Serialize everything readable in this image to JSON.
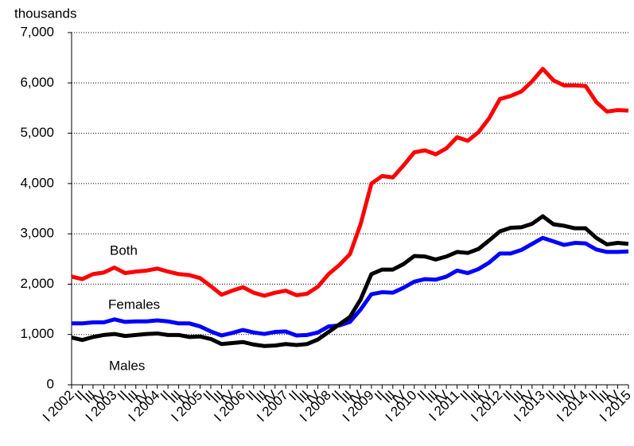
{
  "chart_data": {
    "type": "line",
    "y_label": "thousands",
    "categories": [
      "I 2002",
      "II",
      "III",
      "IV",
      "I 2003",
      "II",
      "III",
      "IV",
      "I 2004",
      "II",
      "III",
      "IV",
      "I 2005",
      "II",
      "III",
      "IV",
      "I 2006",
      "II",
      "III",
      "IV",
      "I 2007",
      "II",
      "III",
      "IV",
      "I 2008",
      "II",
      "III",
      "IV",
      "I 2009",
      "II",
      "III",
      "IV",
      "I 2010",
      "II",
      "III",
      "IV",
      "I 2011",
      "II",
      "III",
      "IV",
      "I 2012",
      "II",
      "III",
      "IV",
      "I 2013",
      "II",
      "III",
      "IV",
      "I 2014",
      "II",
      "III",
      "IV",
      "I 2015"
    ],
    "series": [
      {
        "name": "Both",
        "color": "#ff0000",
        "values": [
          2150,
          2100,
          2200,
          2230,
          2330,
          2220,
          2250,
          2270,
          2310,
          2250,
          2200,
          2180,
          2120,
          1960,
          1790,
          1870,
          1940,
          1830,
          1770,
          1830,
          1870,
          1780,
          1810,
          1950,
          2200,
          2380,
          2600,
          3200,
          4000,
          4150,
          4120,
          4360,
          4620,
          4660,
          4580,
          4700,
          4920,
          4850,
          5020,
          5300,
          5680,
          5740,
          5830,
          6030,
          6280,
          6050,
          5950,
          5950,
          5940,
          5620,
          5430,
          5460,
          5450
        ]
      },
      {
        "name": "Females",
        "color": "#0000ff",
        "values": [
          1220,
          1220,
          1240,
          1240,
          1300,
          1250,
          1260,
          1260,
          1280,
          1260,
          1220,
          1220,
          1160,
          1060,
          980,
          1030,
          1090,
          1040,
          1010,
          1050,
          1060,
          980,
          990,
          1040,
          1160,
          1180,
          1250,
          1500,
          1800,
          1840,
          1830,
          1930,
          2050,
          2100,
          2090,
          2150,
          2270,
          2220,
          2300,
          2430,
          2610,
          2610,
          2680,
          2800,
          2920,
          2850,
          2780,
          2820,
          2810,
          2690,
          2640,
          2640,
          2650
        ]
      },
      {
        "name": "Males",
        "color": "#000000",
        "values": [
          940,
          890,
          950,
          990,
          1010,
          970,
          990,
          1010,
          1020,
          990,
          990,
          950,
          960,
          910,
          810,
          830,
          850,
          800,
          770,
          780,
          810,
          790,
          810,
          900,
          1050,
          1200,
          1350,
          1700,
          2200,
          2290,
          2290,
          2400,
          2560,
          2550,
          2490,
          2550,
          2640,
          2620,
          2700,
          2870,
          3050,
          3120,
          3130,
          3200,
          3350,
          3190,
          3160,
          3110,
          3110,
          2920,
          2790,
          2820,
          2800
        ]
      }
    ],
    "ylim": [
      0,
      7000
    ],
    "yticks": [
      0,
      {
        "value": 1000,
        "label": "1,000"
      },
      {
        "value": 2000,
        "label": "2,000"
      },
      {
        "value": 3000,
        "label": "3,000"
      },
      {
        "value": 4000,
        "label": "4,000"
      },
      {
        "value": 5000,
        "label": "5,000"
      },
      {
        "value": 6000,
        "label": "6,000"
      },
      {
        "value": 7000,
        "label": "7,000"
      }
    ],
    "grid": true
  }
}
